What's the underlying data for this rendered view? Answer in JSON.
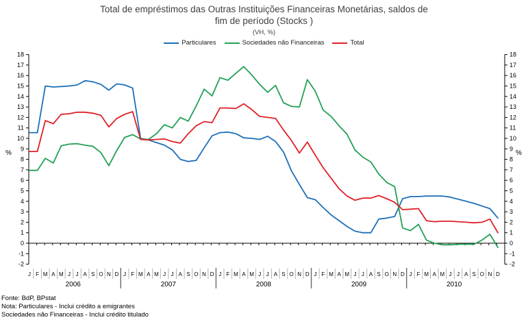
{
  "header": {
    "title_line1": "Total de empréstimos das Outras Instituições Financeiras Monetárias, saldos de",
    "title_line2": "fim de período (Stocks )",
    "subtitle": "(VH, %)"
  },
  "legend": [
    {
      "label": "Particulares",
      "color": "#1b6fba"
    },
    {
      "label": "Sociedades não Financeiras",
      "color": "#22a055"
    },
    {
      "label": "Total",
      "color": "#e01f26"
    }
  ],
  "axes": {
    "y_left_label": "%",
    "y_right_label": "%"
  },
  "footer": {
    "line1": "Fonte: BdP, BPstat",
    "line2": "Nota: Particulares - Inclui crédito a emigrantes",
    "line3": "Sociedades não Financeiras - Inclui crédito titulado"
  },
  "chart_data": {
    "type": "line",
    "title": "Total de empréstimos das Outras Instituições Financeiras Monetárias, saldos de fim de período (Stocks )",
    "subtitle": "(VH, %)",
    "ylabel": "%",
    "ylim": [
      -2,
      18
    ],
    "ytick_step": 1,
    "grid": false,
    "legend_position": "top",
    "years": [
      "2006",
      "2007",
      "2008",
      "2009",
      "2010"
    ],
    "month_letters": [
      "J",
      "F",
      "M",
      "A",
      "M",
      "J",
      "J",
      "A",
      "S",
      "O",
      "N",
      "D"
    ],
    "series": [
      {
        "name": "Particulares",
        "color": "#1b6fba",
        "values": [
          10.55,
          10.55,
          15.0,
          14.9,
          14.95,
          15.0,
          15.1,
          15.5,
          15.4,
          15.15,
          14.6,
          15.2,
          15.1,
          14.8,
          10.0,
          9.85,
          9.6,
          9.35,
          8.9,
          8.0,
          7.8,
          7.9,
          9.1,
          10.25,
          10.55,
          10.6,
          10.45,
          10.05,
          10.0,
          9.9,
          10.2,
          9.7,
          8.7,
          6.9,
          5.6,
          4.35,
          4.15,
          3.4,
          2.7,
          2.15,
          1.6,
          1.15,
          1.0,
          1.0,
          2.3,
          2.4,
          2.55,
          4.25,
          4.45,
          4.45,
          4.5,
          4.5,
          4.5,
          4.4,
          4.2,
          4.0,
          3.8,
          3.55,
          3.3,
          2.4
        ]
      },
      {
        "name": "Sociedades não Financeiras",
        "color": "#22a055",
        "values": [
          6.95,
          6.95,
          8.1,
          7.65,
          9.3,
          9.45,
          9.5,
          9.35,
          9.25,
          8.65,
          7.4,
          8.85,
          10.1,
          10.35,
          9.95,
          9.9,
          10.45,
          11.3,
          11.0,
          12.0,
          11.65,
          13.1,
          14.7,
          14.05,
          15.8,
          15.55,
          16.2,
          16.85,
          16.05,
          15.15,
          14.4,
          15.05,
          13.4,
          13.05,
          13.0,
          15.6,
          14.5,
          12.7,
          12.1,
          11.2,
          10.4,
          8.9,
          8.2,
          7.75,
          6.6,
          5.8,
          5.4,
          1.45,
          1.2,
          1.8,
          0.3,
          0.0,
          -0.15,
          -0.15,
          -0.1,
          -0.1,
          -0.1,
          0.3,
          0.85,
          -0.4
        ]
      },
      {
        "name": "Total",
        "color": "#e01f26",
        "values": [
          8.75,
          8.75,
          11.7,
          11.4,
          12.3,
          12.35,
          12.5,
          12.5,
          12.4,
          12.2,
          11.1,
          11.9,
          12.3,
          12.55,
          9.9,
          9.85,
          9.9,
          9.95,
          9.7,
          9.55,
          10.45,
          11.2,
          11.6,
          11.5,
          12.9,
          12.9,
          12.85,
          13.3,
          12.75,
          12.1,
          12.0,
          11.9,
          10.8,
          9.8,
          8.6,
          9.65,
          8.4,
          7.2,
          6.2,
          5.2,
          4.5,
          4.1,
          4.3,
          4.3,
          4.55,
          4.25,
          3.9,
          3.2,
          3.25,
          3.3,
          2.15,
          2.05,
          2.1,
          2.1,
          2.05,
          2.0,
          1.95,
          2.0,
          2.3,
          1.0
        ]
      }
    ]
  }
}
